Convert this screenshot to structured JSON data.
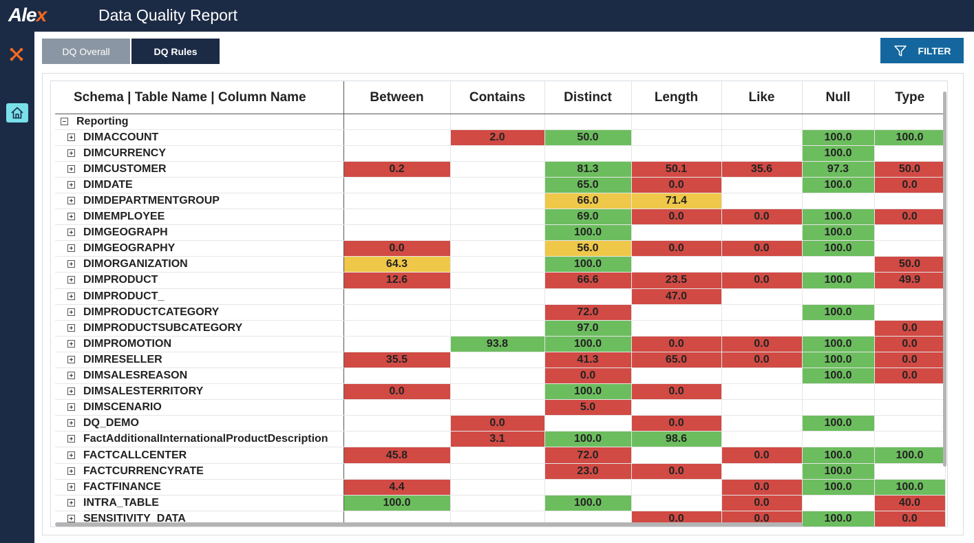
{
  "app": {
    "logo_text": "Ale",
    "logo_accent": "x",
    "title": "Data Quality Report"
  },
  "colors": {
    "brand": "#1c2b45",
    "accent": "#f36b21",
    "pass": "#6cbd5e",
    "fail": "#d14a44",
    "warn": "#efc849",
    "filter": "#14679e"
  },
  "tabs": [
    {
      "label": "DQ Overall"
    },
    {
      "label": "DQ Rules"
    }
  ],
  "filter": {
    "label": "FILTER",
    "icon": "funnel-icon"
  },
  "table": {
    "columns": [
      "Schema | Table Name | Column Name",
      "Between",
      "Contains",
      "Distinct",
      "Length",
      "Like",
      "Null",
      "Type"
    ],
    "group": "Reporting",
    "rows": [
      {
        "name": "DIMACCOUNT",
        "cells": [
          [
            "",
            ""
          ],
          [
            "2.0",
            "r"
          ],
          [
            "50.0",
            "g"
          ],
          [
            "",
            ""
          ],
          [
            "",
            ""
          ],
          [
            "100.0",
            "g"
          ],
          [
            "100.0",
            "g"
          ]
        ]
      },
      {
        "name": "DIMCURRENCY",
        "cells": [
          [
            "",
            ""
          ],
          [
            "",
            ""
          ],
          [
            "",
            ""
          ],
          [
            "",
            ""
          ],
          [
            "",
            ""
          ],
          [
            "100.0",
            "g"
          ],
          [
            "",
            ""
          ]
        ]
      },
      {
        "name": "DIMCUSTOMER",
        "cells": [
          [
            "0.2",
            "r"
          ],
          [
            "",
            ""
          ],
          [
            "81.3",
            "g"
          ],
          [
            "50.1",
            "r"
          ],
          [
            "35.6",
            "r"
          ],
          [
            "97.3",
            "g"
          ],
          [
            "50.0",
            "r"
          ]
        ]
      },
      {
        "name": "DIMDATE",
        "cells": [
          [
            "",
            ""
          ],
          [
            "",
            ""
          ],
          [
            "65.0",
            "g"
          ],
          [
            "0.0",
            "r"
          ],
          [
            "",
            ""
          ],
          [
            "100.0",
            "g"
          ],
          [
            "0.0",
            "r"
          ]
        ]
      },
      {
        "name": "DIMDEPARTMENTGROUP",
        "cells": [
          [
            "",
            ""
          ],
          [
            "",
            ""
          ],
          [
            "66.0",
            "y"
          ],
          [
            "71.4",
            "y"
          ],
          [
            "",
            ""
          ],
          [
            "",
            ""
          ],
          [
            "",
            ""
          ]
        ]
      },
      {
        "name": "DIMEMPLOYEE",
        "cells": [
          [
            "",
            ""
          ],
          [
            "",
            ""
          ],
          [
            "69.0",
            "g"
          ],
          [
            "0.0",
            "r"
          ],
          [
            "0.0",
            "r"
          ],
          [
            "100.0",
            "g"
          ],
          [
            "0.0",
            "r"
          ]
        ]
      },
      {
        "name": "DIMGEOGRAPH",
        "cells": [
          [
            "",
            ""
          ],
          [
            "",
            ""
          ],
          [
            "100.0",
            "g"
          ],
          [
            "",
            ""
          ],
          [
            "",
            ""
          ],
          [
            "100.0",
            "g"
          ],
          [
            "",
            ""
          ]
        ]
      },
      {
        "name": "DIMGEOGRAPHY",
        "cells": [
          [
            "0.0",
            "r"
          ],
          [
            "",
            ""
          ],
          [
            "56.0",
            "y"
          ],
          [
            "0.0",
            "r"
          ],
          [
            "0.0",
            "r"
          ],
          [
            "100.0",
            "g"
          ],
          [
            "",
            ""
          ]
        ]
      },
      {
        "name": "DIMORGANIZATION",
        "cells": [
          [
            "64.3",
            "y"
          ],
          [
            "",
            ""
          ],
          [
            "100.0",
            "g"
          ],
          [
            "",
            ""
          ],
          [
            "",
            ""
          ],
          [
            "",
            ""
          ],
          [
            "50.0",
            "r"
          ]
        ]
      },
      {
        "name": "DIMPRODUCT",
        "cells": [
          [
            "12.6",
            "r"
          ],
          [
            "",
            ""
          ],
          [
            "66.6",
            "r"
          ],
          [
            "23.5",
            "r"
          ],
          [
            "0.0",
            "r"
          ],
          [
            "100.0",
            "g"
          ],
          [
            "49.9",
            "r"
          ]
        ]
      },
      {
        "name": "DIMPRODUCT_",
        "cells": [
          [
            "",
            ""
          ],
          [
            "",
            ""
          ],
          [
            "",
            ""
          ],
          [
            "47.0",
            "r"
          ],
          [
            "",
            ""
          ],
          [
            "",
            ""
          ],
          [
            "",
            ""
          ]
        ]
      },
      {
        "name": "DIMPRODUCTCATEGORY",
        "cells": [
          [
            "",
            ""
          ],
          [
            "",
            ""
          ],
          [
            "72.0",
            "r"
          ],
          [
            "",
            ""
          ],
          [
            "",
            ""
          ],
          [
            "100.0",
            "g"
          ],
          [
            "",
            ""
          ]
        ]
      },
      {
        "name": "DIMPRODUCTSUBCATEGORY",
        "cells": [
          [
            "",
            ""
          ],
          [
            "",
            ""
          ],
          [
            "97.0",
            "g"
          ],
          [
            "",
            ""
          ],
          [
            "",
            ""
          ],
          [
            "",
            ""
          ],
          [
            "0.0",
            "r"
          ]
        ]
      },
      {
        "name": "DIMPROMOTION",
        "cells": [
          [
            "",
            ""
          ],
          [
            "93.8",
            "g"
          ],
          [
            "100.0",
            "g"
          ],
          [
            "0.0",
            "r"
          ],
          [
            "0.0",
            "r"
          ],
          [
            "100.0",
            "g"
          ],
          [
            "0.0",
            "r"
          ]
        ]
      },
      {
        "name": "DIMRESELLER",
        "cells": [
          [
            "35.5",
            "r"
          ],
          [
            "",
            ""
          ],
          [
            "41.3",
            "r"
          ],
          [
            "65.0",
            "r"
          ],
          [
            "0.0",
            "r"
          ],
          [
            "100.0",
            "g"
          ],
          [
            "0.0",
            "r"
          ]
        ]
      },
      {
        "name": "DIMSALESREASON",
        "cells": [
          [
            "",
            ""
          ],
          [
            "",
            ""
          ],
          [
            "0.0",
            "r"
          ],
          [
            "",
            ""
          ],
          [
            "",
            ""
          ],
          [
            "100.0",
            "g"
          ],
          [
            "0.0",
            "r"
          ]
        ]
      },
      {
        "name": "DIMSALESTERRITORY",
        "cells": [
          [
            "0.0",
            "r"
          ],
          [
            "",
            ""
          ],
          [
            "100.0",
            "g"
          ],
          [
            "0.0",
            "r"
          ],
          [
            "",
            ""
          ],
          [
            "",
            ""
          ],
          [
            "",
            ""
          ]
        ]
      },
      {
        "name": "DIMSCENARIO",
        "cells": [
          [
            "",
            ""
          ],
          [
            "",
            ""
          ],
          [
            "5.0",
            "r"
          ],
          [
            "",
            ""
          ],
          [
            "",
            ""
          ],
          [
            "",
            ""
          ],
          [
            "",
            ""
          ]
        ]
      },
      {
        "name": "DQ_DEMO",
        "cells": [
          [
            "",
            ""
          ],
          [
            "0.0",
            "r"
          ],
          [
            "",
            ""
          ],
          [
            "0.0",
            "r"
          ],
          [
            "",
            ""
          ],
          [
            "100.0",
            "g"
          ],
          [
            "",
            ""
          ]
        ]
      },
      {
        "name": "FactAdditionalInternationalProductDescription",
        "cells": [
          [
            "",
            ""
          ],
          [
            "3.1",
            "r"
          ],
          [
            "100.0",
            "g"
          ],
          [
            "98.6",
            "g"
          ],
          [
            "",
            ""
          ],
          [
            "",
            ""
          ],
          [
            "",
            ""
          ]
        ]
      },
      {
        "name": "FACTCALLCENTER",
        "cells": [
          [
            "45.8",
            "r"
          ],
          [
            "",
            ""
          ],
          [
            "72.0",
            "r"
          ],
          [
            "",
            ""
          ],
          [
            "0.0",
            "r"
          ],
          [
            "100.0",
            "g"
          ],
          [
            "100.0",
            "g"
          ]
        ]
      },
      {
        "name": "FACTCURRENCYRATE",
        "cells": [
          [
            "",
            ""
          ],
          [
            "",
            ""
          ],
          [
            "23.0",
            "r"
          ],
          [
            "0.0",
            "r"
          ],
          [
            "",
            ""
          ],
          [
            "100.0",
            "g"
          ],
          [
            "",
            ""
          ]
        ]
      },
      {
        "name": "FACTFINANCE",
        "cells": [
          [
            "4.4",
            "r"
          ],
          [
            "",
            ""
          ],
          [
            "",
            ""
          ],
          [
            "",
            ""
          ],
          [
            "0.0",
            "r"
          ],
          [
            "100.0",
            "g"
          ],
          [
            "100.0",
            "g"
          ]
        ]
      },
      {
        "name": "INTRA_TABLE",
        "cells": [
          [
            "100.0",
            "g"
          ],
          [
            "",
            ""
          ],
          [
            "100.0",
            "g"
          ],
          [
            "",
            ""
          ],
          [
            "0.0",
            "r"
          ],
          [
            "",
            ""
          ],
          [
            "40.0",
            "r"
          ]
        ]
      },
      {
        "name": "SENSITIVITY_DATA",
        "cells": [
          [
            "",
            ""
          ],
          [
            "",
            ""
          ],
          [
            "",
            ""
          ],
          [
            "0.0",
            "r"
          ],
          [
            "0.0",
            "r"
          ],
          [
            "100.0",
            "g"
          ],
          [
            "0.0",
            "r"
          ]
        ]
      }
    ]
  }
}
